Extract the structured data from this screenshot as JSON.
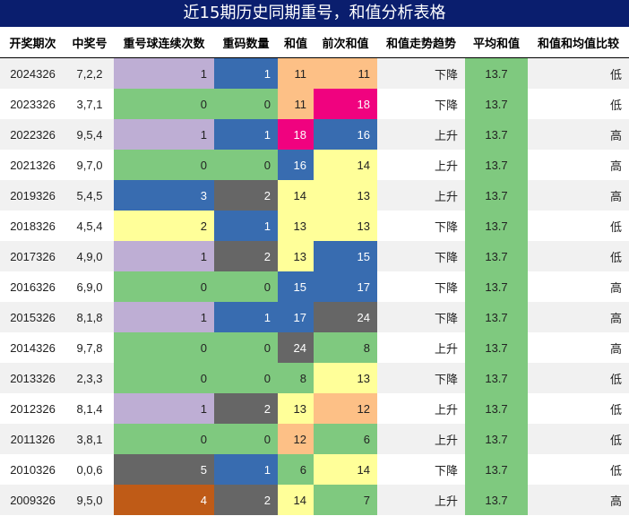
{
  "title": "近15期历史同期重号，和值分析表格",
  "headers": [
    "开奖期次",
    "中奖号",
    "重号球连续次数",
    "重码数量",
    "和值",
    "前次和值",
    "和值走势趋势",
    "平均和值",
    "和值和均值比较"
  ],
  "rows": [
    {
      "issue": "2024326",
      "numbers": "7,2,2",
      "streak": "1",
      "repeat": "1",
      "sum": "11",
      "prev_sum": "11",
      "trend": "下降",
      "avg": "13.7",
      "compare": "低"
    },
    {
      "issue": "2023326",
      "numbers": "3,7,1",
      "streak": "0",
      "repeat": "0",
      "sum": "11",
      "prev_sum": "18",
      "trend": "下降",
      "avg": "13.7",
      "compare": "低"
    },
    {
      "issue": "2022326",
      "numbers": "9,5,4",
      "streak": "1",
      "repeat": "1",
      "sum": "18",
      "prev_sum": "16",
      "trend": "上升",
      "avg": "13.7",
      "compare": "高"
    },
    {
      "issue": "2021326",
      "numbers": "9,7,0",
      "streak": "0",
      "repeat": "0",
      "sum": "16",
      "prev_sum": "14",
      "trend": "上升",
      "avg": "13.7",
      "compare": "高"
    },
    {
      "issue": "2019326",
      "numbers": "5,4,5",
      "streak": "3",
      "repeat": "2",
      "sum": "14",
      "prev_sum": "13",
      "trend": "上升",
      "avg": "13.7",
      "compare": "高"
    },
    {
      "issue": "2018326",
      "numbers": "4,5,4",
      "streak": "2",
      "repeat": "1",
      "sum": "13",
      "prev_sum": "13",
      "trend": "下降",
      "avg": "13.7",
      "compare": "低"
    },
    {
      "issue": "2017326",
      "numbers": "4,9,0",
      "streak": "1",
      "repeat": "2",
      "sum": "13",
      "prev_sum": "15",
      "trend": "下降",
      "avg": "13.7",
      "compare": "低"
    },
    {
      "issue": "2016326",
      "numbers": "6,9,0",
      "streak": "0",
      "repeat": "0",
      "sum": "15",
      "prev_sum": "17",
      "trend": "下降",
      "avg": "13.7",
      "compare": "高"
    },
    {
      "issue": "2015326",
      "numbers": "8,1,8",
      "streak": "1",
      "repeat": "1",
      "sum": "17",
      "prev_sum": "24",
      "trend": "下降",
      "avg": "13.7",
      "compare": "高"
    },
    {
      "issue": "2014326",
      "numbers": "9,7,8",
      "streak": "0",
      "repeat": "0",
      "sum": "24",
      "prev_sum": "8",
      "trend": "上升",
      "avg": "13.7",
      "compare": "高"
    },
    {
      "issue": "2013326",
      "numbers": "2,3,3",
      "streak": "0",
      "repeat": "0",
      "sum": "8",
      "prev_sum": "13",
      "trend": "下降",
      "avg": "13.7",
      "compare": "低"
    },
    {
      "issue": "2012326",
      "numbers": "8,1,4",
      "streak": "1",
      "repeat": "2",
      "sum": "13",
      "prev_sum": "12",
      "trend": "上升",
      "avg": "13.7",
      "compare": "低"
    },
    {
      "issue": "2011326",
      "numbers": "3,8,1",
      "streak": "0",
      "repeat": "0",
      "sum": "12",
      "prev_sum": "6",
      "trend": "上升",
      "avg": "13.7",
      "compare": "低"
    },
    {
      "issue": "2010326",
      "numbers": "0,0,6",
      "streak": "5",
      "repeat": "1",
      "sum": "6",
      "prev_sum": "14",
      "trend": "下降",
      "avg": "13.7",
      "compare": "低"
    },
    {
      "issue": "2009326",
      "numbers": "9,5,0",
      "streak": "4",
      "repeat": "2",
      "sum": "14",
      "prev_sum": "7",
      "trend": "上升",
      "avg": "13.7",
      "compare": "高"
    }
  ],
  "colors": {
    "title_bg": "#0a1e6e",
    "avg_bg": "#7fc97f",
    "streak": {
      "0": "#7fc97f",
      "1": "#beaed4",
      "2": "#ffff99",
      "3": "#386cb0",
      "4": "#bf5b17",
      "5": "#666666"
    },
    "repeat": {
      "0": "#7fc97f",
      "1": "#386cb0",
      "2": "#666666"
    },
    "sum": {
      "6": "#7fc97f",
      "7": "#7fc97f",
      "8": "#7fc97f",
      "11": "#fdc086",
      "12": "#fdc086",
      "13": "#ffff99",
      "14": "#ffff99",
      "15": "#386cb0",
      "16": "#386cb0",
      "17": "#386cb0",
      "18": "#f0027f",
      "24": "#666666"
    }
  }
}
